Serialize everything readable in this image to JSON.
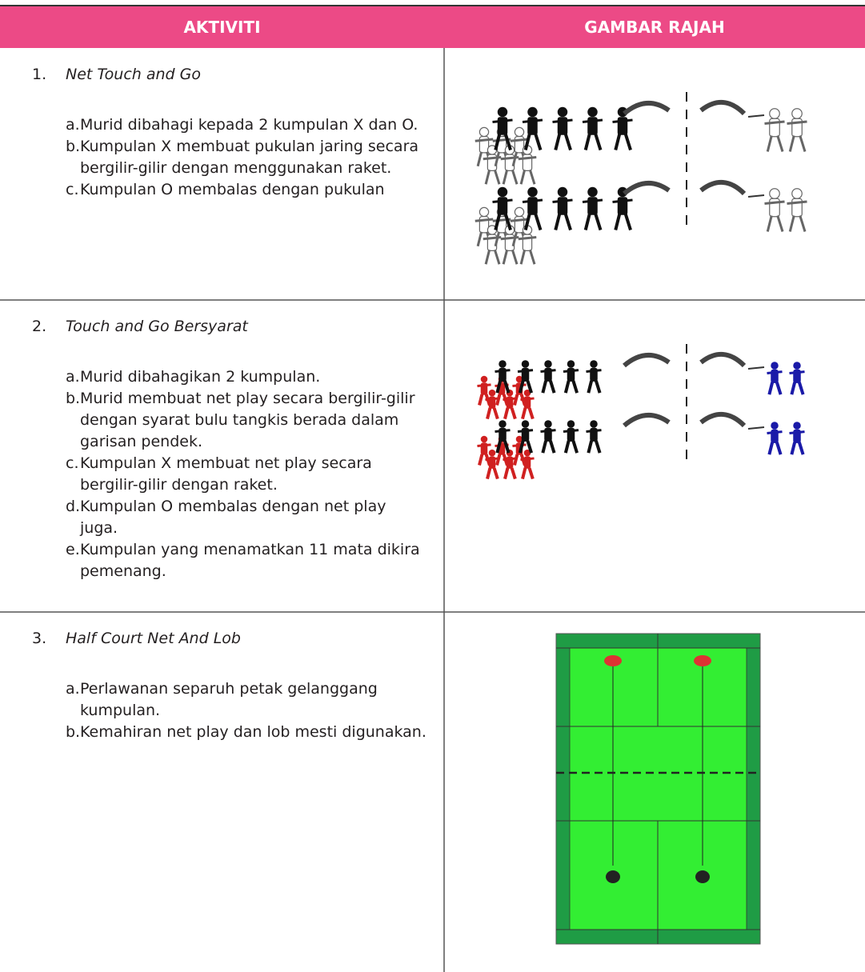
{
  "table": {
    "header": [
      "AKTIVITI",
      "GAMBAR RAJAH"
    ],
    "rows": [
      {
        "number": "1.",
        "title": "Net Touch and Go",
        "items": [
          {
            "letter": "a.",
            "text": "Murid dibahagi kepada 2 kumpulan X dan O."
          },
          {
            "letter": "b.",
            "text": "Kumpulan X membuat pukulan jaring secara bergilir-gilir dengan menggunakan raket."
          },
          {
            "letter": "c.",
            "text": "Kumpulan O membalas dengan pukulan"
          }
        ]
      },
      {
        "number": "2.",
        "title": "Touch and Go Bersyarat",
        "items": [
          {
            "letter": "a.",
            "text": "Murid dibahagikan 2 kumpulan."
          },
          {
            "letter": "b.",
            "text": "Murid membuat net play secara bergilir-gilir dengan syarat bulu tangkis berada dalam garisan pendek."
          },
          {
            "letter": "c.",
            "text": "Kumpulan X membuat net play secara bergilir-gilir dengan raket."
          },
          {
            "letter": "d.",
            "text": "Kumpulan O membalas dengan net play juga."
          },
          {
            "letter": "e.",
            "text": "Kumpulan yang menamatkan 11 mata dikira pemenang."
          }
        ]
      },
      {
        "number": "3.",
        "title": "Half Court Net And Lob",
        "items": [
          {
            "letter": "a.",
            "text": "Perlawanan separuh petak gelanggang kumpulan."
          },
          {
            "letter": "b.",
            "text": "Kemahiran net play dan lob mesti digunakan."
          }
        ]
      }
    ]
  }
}
